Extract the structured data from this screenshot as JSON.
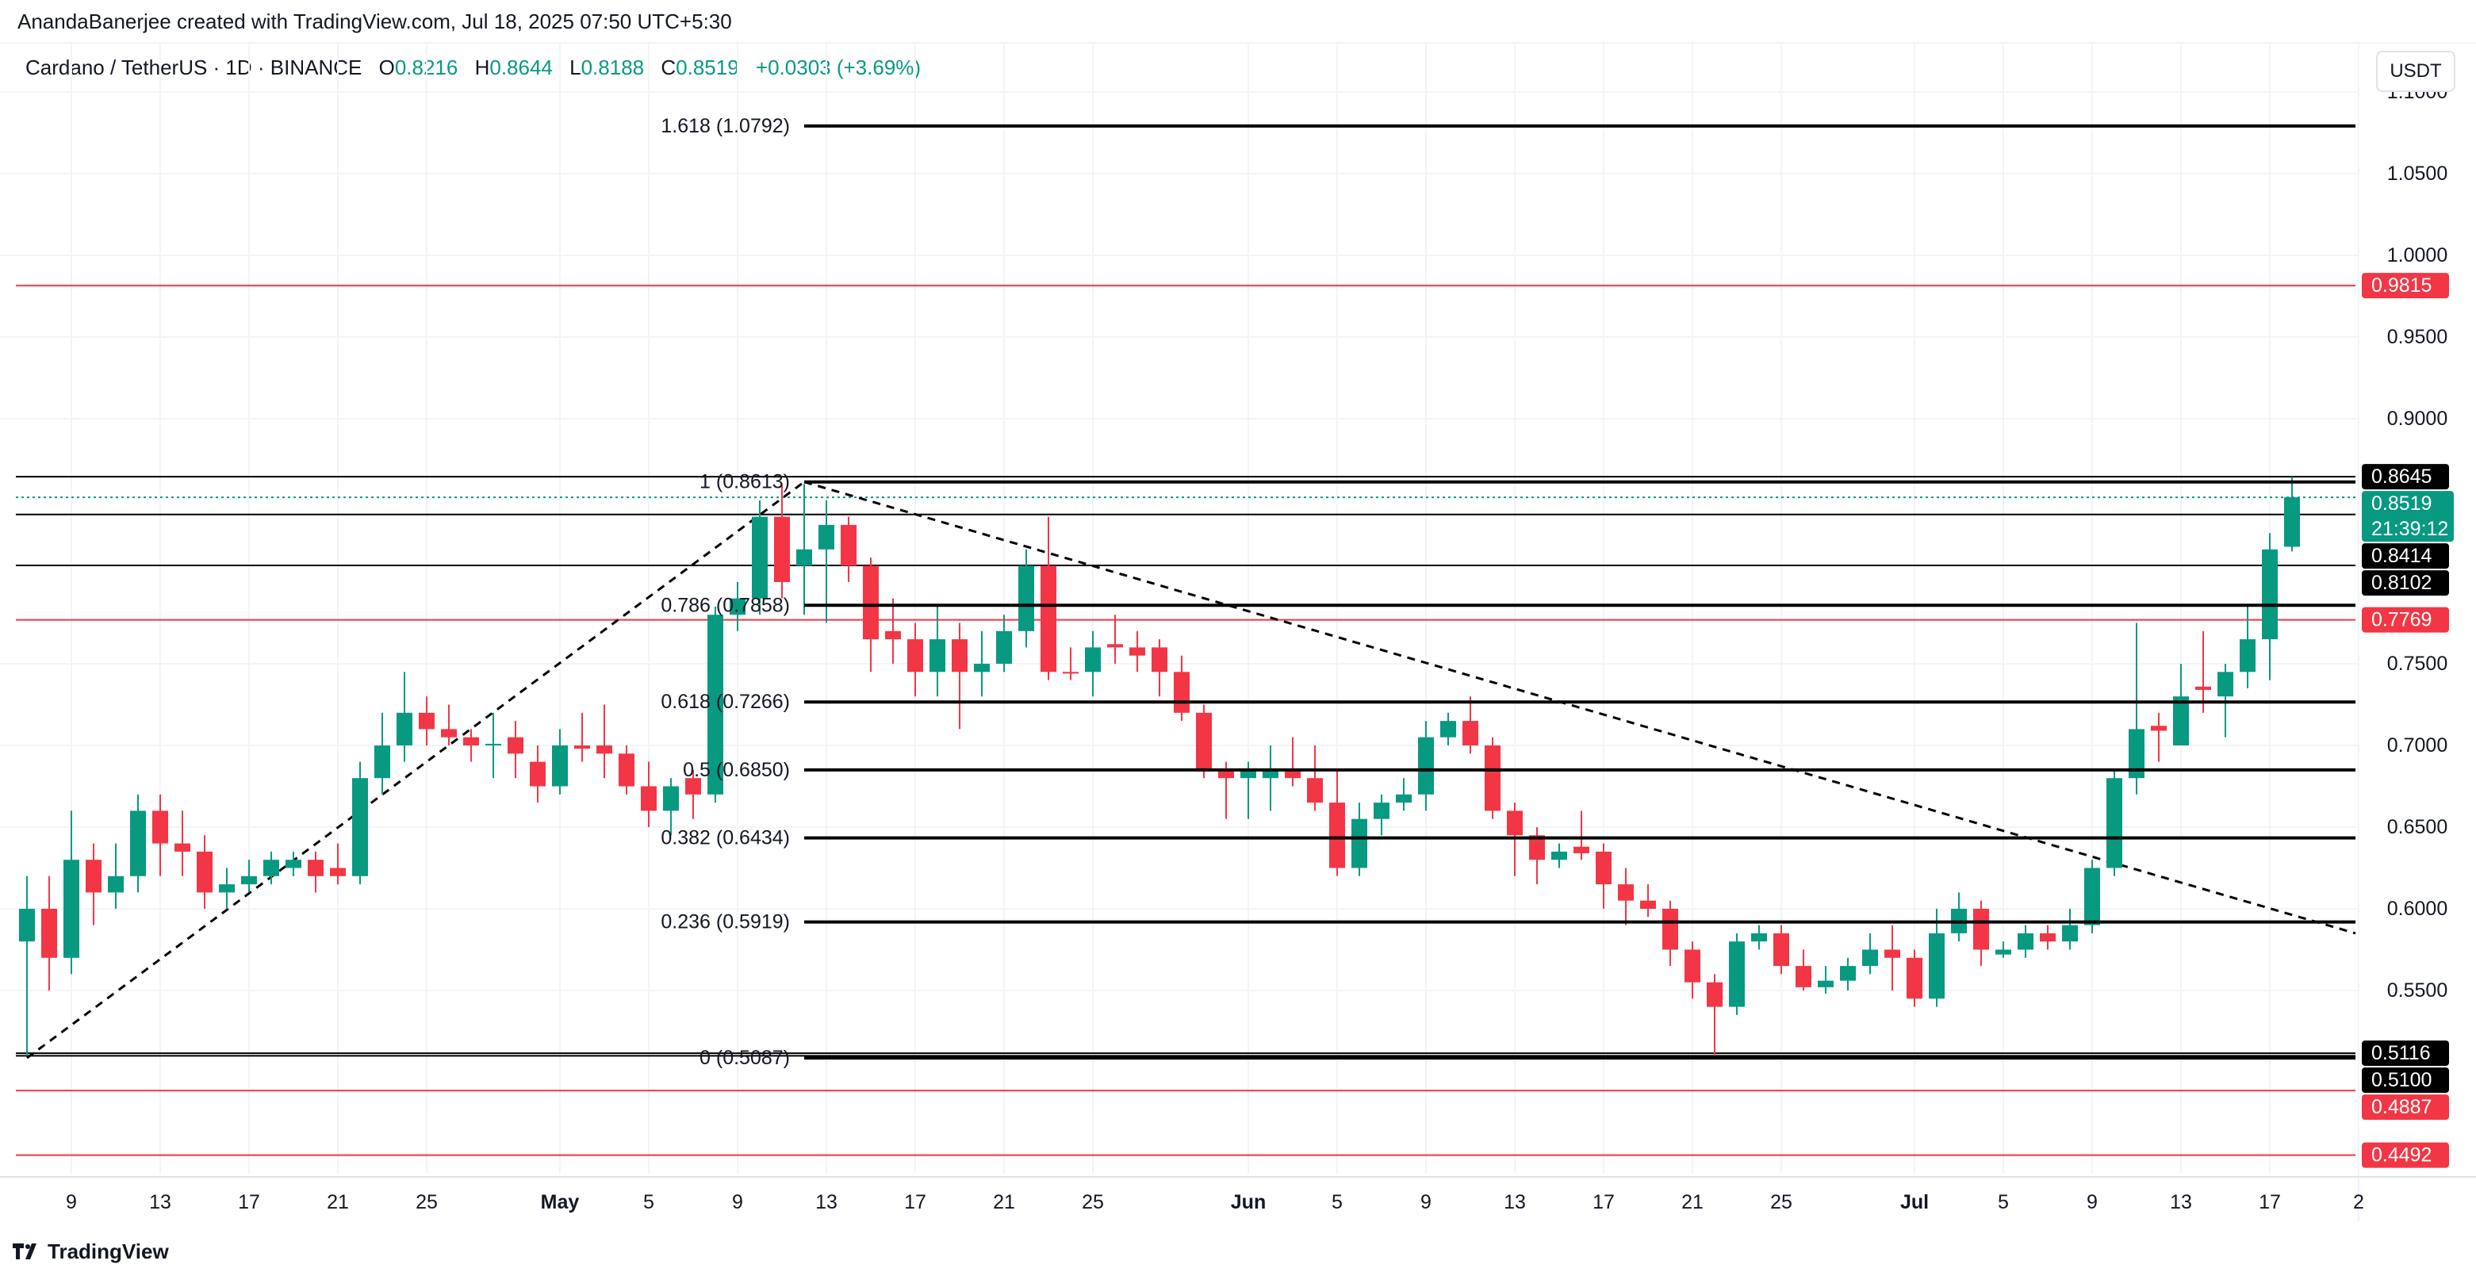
{
  "credit": "AnandaBanerjee created with TradingView.com, Jul 18, 2025 07:50 UTC+5:30",
  "legend": {
    "symbol": "Cardano / TetherUS · 1D · BINANCE",
    "o_label": "O",
    "o": "0.8216",
    "h_label": "H",
    "h": "0.8644",
    "l_label": "L",
    "l": "0.8188",
    "c_label": "C",
    "c": "0.8519",
    "change": "+0.0303 (+3.69%)"
  },
  "currency_button": "USDT",
  "logo": "TradingView",
  "colors": {
    "up": "#089981",
    "down": "#f23645",
    "line": "#000000",
    "red_line": "#f23645"
  },
  "chart_data": {
    "type": "candlestick",
    "start_date": "2025-04-07",
    "interval": "1D",
    "ohlc": [
      [
        0.58,
        0.62,
        0.51,
        0.6
      ],
      [
        0.6,
        0.62,
        0.55,
        0.57
      ],
      [
        0.57,
        0.66,
        0.56,
        0.63
      ],
      [
        0.63,
        0.64,
        0.59,
        0.61
      ],
      [
        0.61,
        0.64,
        0.6,
        0.62
      ],
      [
        0.62,
        0.67,
        0.61,
        0.66
      ],
      [
        0.66,
        0.67,
        0.62,
        0.64
      ],
      [
        0.64,
        0.66,
        0.62,
        0.635
      ],
      [
        0.635,
        0.645,
        0.6,
        0.61
      ],
      [
        0.61,
        0.625,
        0.6,
        0.615
      ],
      [
        0.615,
        0.63,
        0.61,
        0.62
      ],
      [
        0.62,
        0.635,
        0.615,
        0.63
      ],
      [
        0.625,
        0.635,
        0.62,
        0.63
      ],
      [
        0.63,
        0.635,
        0.61,
        0.62
      ],
      [
        0.625,
        0.64,
        0.615,
        0.62
      ],
      [
        0.62,
        0.69,
        0.615,
        0.68
      ],
      [
        0.68,
        0.72,
        0.67,
        0.7
      ],
      [
        0.7,
        0.745,
        0.69,
        0.72
      ],
      [
        0.72,
        0.73,
        0.7,
        0.71
      ],
      [
        0.71,
        0.725,
        0.7,
        0.705
      ],
      [
        0.705,
        0.71,
        0.69,
        0.7
      ],
      [
        0.7,
        0.72,
        0.68,
        0.701
      ],
      [
        0.705,
        0.715,
        0.68,
        0.695
      ],
      [
        0.69,
        0.7,
        0.665,
        0.675
      ],
      [
        0.675,
        0.71,
        0.67,
        0.7
      ],
      [
        0.7,
        0.72,
        0.69,
        0.698
      ],
      [
        0.7,
        0.725,
        0.68,
        0.695
      ],
      [
        0.695,
        0.7,
        0.67,
        0.675
      ],
      [
        0.675,
        0.69,
        0.65,
        0.66
      ],
      [
        0.66,
        0.68,
        0.645,
        0.675
      ],
      [
        0.68,
        0.685,
        0.655,
        0.67
      ],
      [
        0.67,
        0.785,
        0.665,
        0.78
      ],
      [
        0.78,
        0.8,
        0.77,
        0.79
      ],
      [
        0.79,
        0.85,
        0.78,
        0.84
      ],
      [
        0.84,
        0.86,
        0.79,
        0.8
      ],
      [
        0.81,
        0.86,
        0.78,
        0.82
      ],
      [
        0.82,
        0.85,
        0.775,
        0.835
      ],
      [
        0.835,
        0.84,
        0.8,
        0.81
      ],
      [
        0.81,
        0.815,
        0.745,
        0.765
      ],
      [
        0.77,
        0.79,
        0.75,
        0.765
      ],
      [
        0.765,
        0.775,
        0.73,
        0.745
      ],
      [
        0.745,
        0.785,
        0.73,
        0.765
      ],
      [
        0.765,
        0.775,
        0.71,
        0.745
      ],
      [
        0.745,
        0.77,
        0.73,
        0.75
      ],
      [
        0.75,
        0.78,
        0.745,
        0.77
      ],
      [
        0.77,
        0.82,
        0.76,
        0.81
      ],
      [
        0.81,
        0.84,
        0.74,
        0.745
      ],
      [
        0.745,
        0.76,
        0.74,
        0.744
      ],
      [
        0.745,
        0.77,
        0.73,
        0.76
      ],
      [
        0.762,
        0.78,
        0.75,
        0.76
      ],
      [
        0.76,
        0.77,
        0.745,
        0.755
      ],
      [
        0.76,
        0.765,
        0.73,
        0.745
      ],
      [
        0.745,
        0.755,
        0.715,
        0.72
      ],
      [
        0.72,
        0.725,
        0.68,
        0.685
      ],
      [
        0.685,
        0.69,
        0.655,
        0.68
      ],
      [
        0.68,
        0.69,
        0.655,
        0.685
      ],
      [
        0.68,
        0.7,
        0.66,
        0.685
      ],
      [
        0.685,
        0.705,
        0.675,
        0.68
      ],
      [
        0.68,
        0.7,
        0.66,
        0.665
      ],
      [
        0.665,
        0.685,
        0.62,
        0.625
      ],
      [
        0.625,
        0.665,
        0.62,
        0.655
      ],
      [
        0.655,
        0.67,
        0.645,
        0.665
      ],
      [
        0.665,
        0.68,
        0.66,
        0.67
      ],
      [
        0.67,
        0.715,
        0.66,
        0.705
      ],
      [
        0.705,
        0.72,
        0.7,
        0.715
      ],
      [
        0.715,
        0.73,
        0.695,
        0.7
      ],
      [
        0.7,
        0.705,
        0.655,
        0.66
      ],
      [
        0.66,
        0.665,
        0.62,
        0.645
      ],
      [
        0.645,
        0.65,
        0.615,
        0.63
      ],
      [
        0.63,
        0.64,
        0.625,
        0.635
      ],
      [
        0.638,
        0.66,
        0.63,
        0.634
      ],
      [
        0.635,
        0.64,
        0.6,
        0.615
      ],
      [
        0.615,
        0.625,
        0.59,
        0.605
      ],
      [
        0.605,
        0.615,
        0.595,
        0.6
      ],
      [
        0.6,
        0.605,
        0.565,
        0.575
      ],
      [
        0.575,
        0.58,
        0.545,
        0.555
      ],
      [
        0.555,
        0.56,
        0.51,
        0.54
      ],
      [
        0.54,
        0.585,
        0.535,
        0.58
      ],
      [
        0.58,
        0.59,
        0.575,
        0.585
      ],
      [
        0.585,
        0.59,
        0.56,
        0.565
      ],
      [
        0.565,
        0.575,
        0.55,
        0.552
      ],
      [
        0.552,
        0.565,
        0.548,
        0.556
      ],
      [
        0.556,
        0.57,
        0.55,
        0.565
      ],
      [
        0.565,
        0.585,
        0.56,
        0.575
      ],
      [
        0.575,
        0.59,
        0.55,
        0.57
      ],
      [
        0.57,
        0.575,
        0.54,
        0.545
      ],
      [
        0.545,
        0.6,
        0.54,
        0.585
      ],
      [
        0.585,
        0.61,
        0.58,
        0.6
      ],
      [
        0.6,
        0.605,
        0.565,
        0.575
      ],
      [
        0.572,
        0.58,
        0.57,
        0.575
      ],
      [
        0.575,
        0.59,
        0.57,
        0.585
      ],
      [
        0.585,
        0.59,
        0.575,
        0.58
      ],
      [
        0.58,
        0.6,
        0.575,
        0.59
      ],
      [
        0.59,
        0.63,
        0.585,
        0.625
      ],
      [
        0.625,
        0.685,
        0.62,
        0.68
      ],
      [
        0.68,
        0.775,
        0.67,
        0.71
      ],
      [
        0.712,
        0.72,
        0.69,
        0.709
      ],
      [
        0.7,
        0.75,
        0.7,
        0.73
      ],
      [
        0.736,
        0.77,
        0.72,
        0.734
      ],
      [
        0.73,
        0.75,
        0.705,
        0.745
      ],
      [
        0.745,
        0.785,
        0.735,
        0.765
      ],
      [
        0.765,
        0.83,
        0.74,
        0.82
      ],
      [
        0.8216,
        0.8644,
        0.8188,
        0.8519
      ]
    ],
    "x_tick_labels": [
      "9",
      "13",
      "17",
      "21",
      "25",
      "May",
      "5",
      "9",
      "13",
      "17",
      "21",
      "25",
      "Jun",
      "5",
      "9",
      "13",
      "17",
      "21",
      "25",
      "Jul",
      "5",
      "9",
      "13",
      "17",
      "2"
    ],
    "y_tick_labels": [
      "1.1000",
      "1.0500",
      "1.0000",
      "0.9500",
      "0.9000",
      "0.7500",
      "0.7000",
      "0.6500",
      "0.6000",
      "0.5500"
    ],
    "y_range": [
      0.43,
      1.12
    ],
    "fib_levels": [
      {
        "label": "1.618 (1.0792)",
        "value": 1.0792
      },
      {
        "label": "1 (0.8613)",
        "value": 0.8613
      },
      {
        "label": "0.786 (0.7858)",
        "value": 0.7858
      },
      {
        "label": "0.618 (0.7266)",
        "value": 0.7266
      },
      {
        "label": "0.5 (0.6850)",
        "value": 0.685
      },
      {
        "label": "0.382 (0.6434)",
        "value": 0.6434
      },
      {
        "label": "0.236 (0.5919)",
        "value": 0.5919
      },
      {
        "label": "0 (0.5087)",
        "value": 0.5087
      }
    ],
    "horizontal_lines": [
      {
        "label": "0.8645",
        "value": 0.8645,
        "style": "black"
      },
      {
        "label": "0.8414",
        "value": 0.8414,
        "style": "black"
      },
      {
        "label": "0.8102",
        "value": 0.8102,
        "style": "black"
      },
      {
        "label": "0.5116",
        "value": 0.5116,
        "style": "black"
      },
      {
        "label": "0.5100",
        "value": 0.51,
        "style": "black"
      },
      {
        "label": "0.9815",
        "value": 0.9815,
        "style": "red"
      },
      {
        "label": "0.7769",
        "value": 0.7769,
        "style": "red"
      },
      {
        "label": "0.4887",
        "value": 0.4887,
        "style": "red"
      },
      {
        "label": "0.4492",
        "value": 0.4492,
        "style": "red"
      }
    ],
    "last_price": {
      "label": "0.8519",
      "value": 0.8519,
      "countdown": "21:39:12"
    },
    "trendlines": [
      {
        "from": [
          "2025-04-07",
          0.5087
        ],
        "to": [
          "2025-05-12",
          0.8613
        ]
      },
      {
        "from": [
          "2025-05-12",
          0.8613
        ],
        "to": [
          "2025-07-20",
          0.585
        ]
      }
    ]
  }
}
